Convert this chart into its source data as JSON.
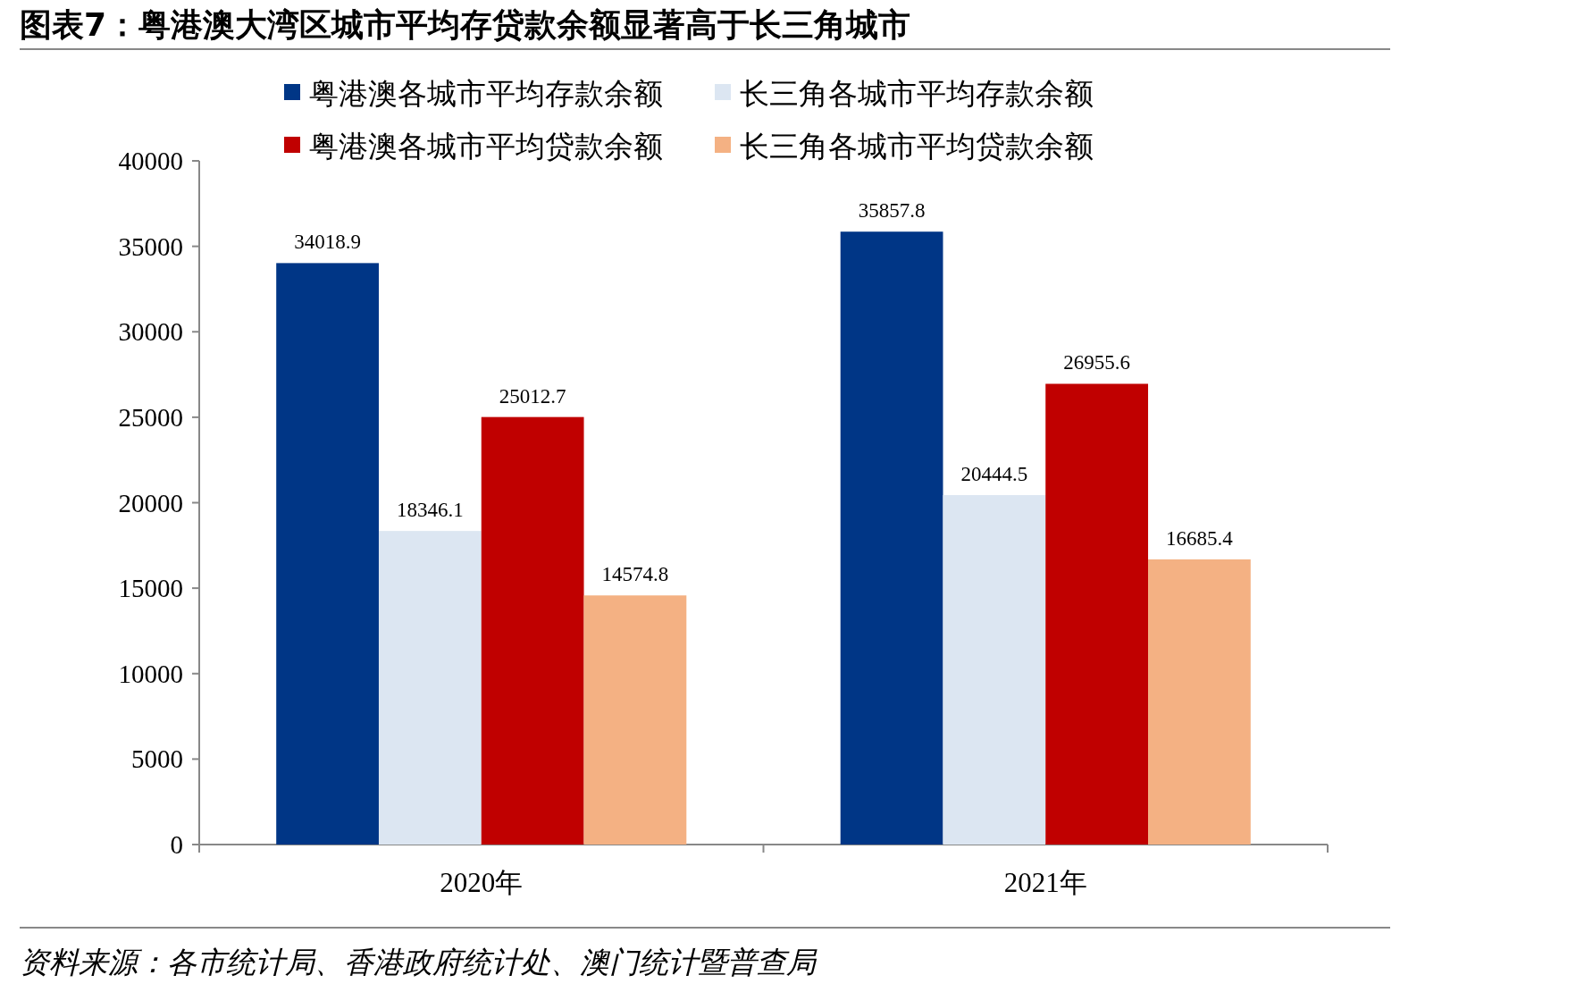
{
  "chart_data": {
    "type": "bar",
    "title": "图表7：粤港澳大湾区城市平均存贷款余额显著高于长三角城市",
    "categories": [
      "2020年",
      "2021年"
    ],
    "series": [
      {
        "name": "粤港澳各城市平均存款余额",
        "color": "#003686",
        "values": [
          34018.9,
          35857.8
        ]
      },
      {
        "name": "长三角各城市平均存款余额",
        "color": "#dce6f2",
        "values": [
          18346.1,
          20444.5
        ]
      },
      {
        "name": "粤港澳各城市平均贷款余额",
        "color": "#c00000",
        "values": [
          25012.7,
          26955.6
        ]
      },
      {
        "name": "长三角各城市平均贷款余额",
        "color": "#f4b183",
        "values": [
          14574.8,
          16685.4
        ]
      }
    ],
    "ylim": [
      0,
      40000
    ],
    "yticks": [
      0,
      5000,
      10000,
      15000,
      20000,
      25000,
      30000,
      35000,
      40000
    ],
    "data_labels": true,
    "legend": "top",
    "grid": false,
    "annotations": [
      "资料来源：各市统计局、香港政府统计处、澳门统计暨普查局"
    ]
  }
}
